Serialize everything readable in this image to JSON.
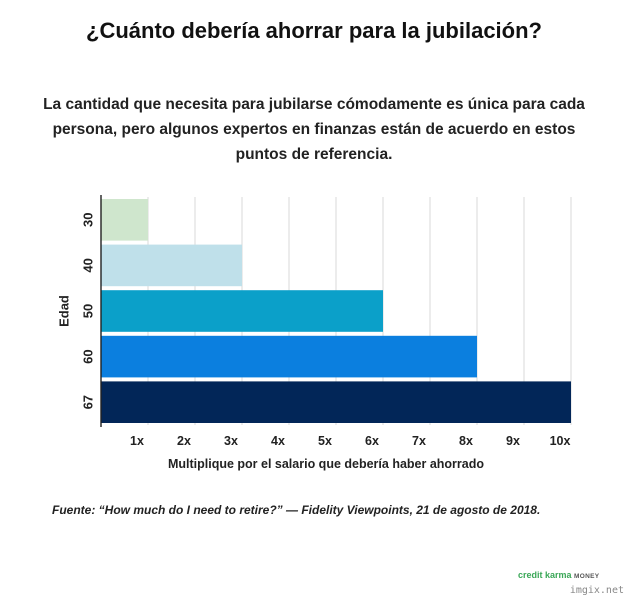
{
  "header": {
    "title": "¿Cuánto debería ahorrar para la jubilación?",
    "subtitle": "La cantidad que necesita para jubilarse cómodamente es única para cada persona, pero algunos expertos en finanzas están de acuerdo en estos puntos de referencia."
  },
  "chart_data": {
    "type": "bar",
    "orientation": "horizontal",
    "categories": [
      "30",
      "40",
      "50",
      "60",
      "67"
    ],
    "values": [
      1,
      3,
      6,
      8,
      10
    ],
    "colors": [
      "#cfe6cd",
      "#bfe0ea",
      "#0ba0c9",
      "#0b7fdf",
      "#022658"
    ],
    "xlabel": "Multiplique por el salario que debería haber ahorrado",
    "ylabel": "Edad",
    "xlim": [
      0,
      10
    ],
    "xticks": [
      "1x",
      "2x",
      "3x",
      "4x",
      "5x",
      "6x",
      "7x",
      "8x",
      "9x",
      "10x"
    ],
    "grid": true
  },
  "footer": {
    "source": "Fuente: “How much do I need to retire?” — Fidelity Viewpoints, 21 de agosto de 2018.",
    "logo_brand": "credit karma",
    "logo_suffix": "MONEY",
    "watermark": "imgix.net"
  }
}
